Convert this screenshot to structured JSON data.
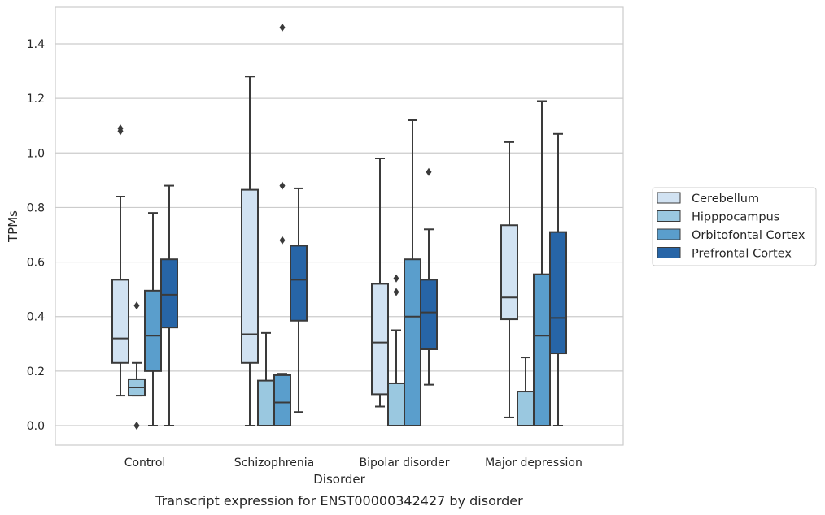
{
  "chart_data": {
    "type": "box",
    "caption": "Transcript expression for ENST00000342427 by disorder",
    "xlabel": "Disorder",
    "ylabel": "TPMs",
    "ylim": [
      -0.07,
      1.54
    ],
    "yticks": [
      0.0,
      0.2,
      0.4,
      0.6,
      0.8,
      1.0,
      1.2,
      1.4
    ],
    "ytick_labels": [
      "0.0",
      "0.2",
      "0.4",
      "0.6",
      "0.8",
      "1.0",
      "1.2",
      "1.4"
    ],
    "grid": true,
    "legend_position": "right",
    "categories": [
      "Control",
      "Schizophrenia",
      "Bipolar disorder",
      "Major depression"
    ],
    "series": [
      {
        "name": "Cerebellum",
        "color": "#d1e2f2",
        "boxes": [
          {
            "whisker_low": 0.11,
            "q1": 0.23,
            "median": 0.32,
            "q3": 0.535,
            "whisker_high": 0.84,
            "outliers": [
              1.08,
              1.09
            ]
          },
          {
            "whisker_low": 0.0,
            "q1": 0.23,
            "median": 0.335,
            "q3": 0.865,
            "whisker_high": 1.28,
            "outliers": []
          },
          {
            "whisker_low": 0.07,
            "q1": 0.115,
            "median": 0.305,
            "q3": 0.52,
            "whisker_high": 0.98,
            "outliers": []
          },
          {
            "whisker_low": 0.03,
            "q1": 0.39,
            "median": 0.47,
            "q3": 0.735,
            "whisker_high": 1.04,
            "outliers": []
          }
        ]
      },
      {
        "name": "Hipppocampus",
        "color": "#9ac8e0",
        "boxes": [
          {
            "whisker_low": 0.11,
            "q1": 0.11,
            "median": 0.14,
            "q3": 0.17,
            "whisker_high": 0.23,
            "outliers": [
              0.44,
              0.0,
              0.0
            ]
          },
          {
            "whisker_low": 0.0,
            "q1": 0.0,
            "median": 0.0,
            "q3": 0.165,
            "whisker_high": 0.34,
            "outliers": []
          },
          {
            "whisker_low": 0.0,
            "q1": 0.0,
            "median": 0.0,
            "q3": 0.155,
            "whisker_high": 0.35,
            "outliers": [
              0.49,
              0.54
            ]
          },
          {
            "whisker_low": 0.0,
            "q1": 0.0,
            "median": 0.0,
            "q3": 0.125,
            "whisker_high": 0.25,
            "outliers": []
          }
        ]
      },
      {
        "name": "Orbitofontal Cortex",
        "color": "#5a9ecc",
        "boxes": [
          {
            "whisker_low": 0.0,
            "q1": 0.2,
            "median": 0.33,
            "q3": 0.495,
            "whisker_high": 0.78,
            "outliers": []
          },
          {
            "whisker_low": 0.0,
            "q1": 0.0,
            "median": 0.085,
            "q3": 0.185,
            "whisker_high": 0.19,
            "outliers": [
              0.68,
              0.88,
              1.46
            ]
          },
          {
            "whisker_low": 0.0,
            "q1": 0.0,
            "median": 0.4,
            "q3": 0.61,
            "whisker_high": 1.12,
            "outliers": []
          },
          {
            "whisker_low": 0.0,
            "q1": 0.0,
            "median": 0.33,
            "q3": 0.555,
            "whisker_high": 1.19,
            "outliers": []
          }
        ]
      },
      {
        "name": "Prefrontal Cortex",
        "color": "#2765a7",
        "boxes": [
          {
            "whisker_low": 0.0,
            "q1": 0.36,
            "median": 0.48,
            "q3": 0.61,
            "whisker_high": 0.88,
            "outliers": []
          },
          {
            "whisker_low": 0.05,
            "q1": 0.385,
            "median": 0.535,
            "q3": 0.66,
            "whisker_high": 0.87,
            "outliers": []
          },
          {
            "whisker_low": 0.15,
            "q1": 0.28,
            "median": 0.415,
            "q3": 0.535,
            "whisker_high": 0.72,
            "outliers": [
              0.93
            ]
          },
          {
            "whisker_low": 0.0,
            "q1": 0.265,
            "median": 0.395,
            "q3": 0.71,
            "whisker_high": 1.07,
            "outliers": []
          }
        ]
      }
    ]
  }
}
